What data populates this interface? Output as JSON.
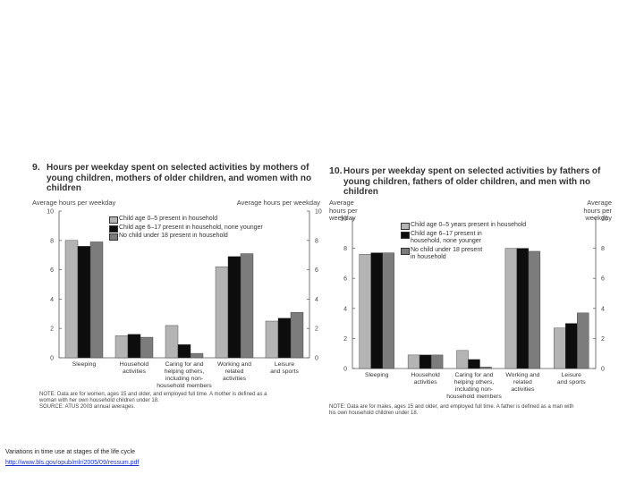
{
  "footer": {
    "caption": "Variations in time use at stages of the life cycle",
    "link": "http://www.bls.gov/opub/mlr/2005/09/ressum.pdf"
  },
  "colors": {
    "bar_light": "#b4b4b4",
    "bar_dark": "#0d0d0d",
    "bar_mid": "#7c7c7c"
  },
  "chart_data": [
    {
      "type": "bar",
      "number": "9.",
      "title": "Hours per weekday spent on selected activities by mothers of young children, mothers of older children, and women with no children",
      "ylabel_left": "Average hours per weekday",
      "ylabel_right": "Average hours per weekday",
      "ylim": [
        0,
        10
      ],
      "yticks": [
        "0",
        "2",
        "4",
        "6",
        "8",
        "10"
      ],
      "grid": false,
      "legend_position": "top-center",
      "categories": [
        "Sleeping",
        "Household activities",
        "Caring for and helping others, including non-household members",
        "Working and related activities",
        "Leisure and sports"
      ],
      "category_lines": [
        [
          "Sleeping"
        ],
        [
          "Household",
          "activities"
        ],
        [
          "Caring for and",
          "helping others,",
          "including non-",
          "household members"
        ],
        [
          "Working and",
          "related",
          "activities"
        ],
        [
          "Leisure",
          "and sports"
        ]
      ],
      "series": [
        {
          "name": "Child age 0–5 present in household",
          "values": [
            8.0,
            1.5,
            2.2,
            6.2,
            2.5
          ]
        },
        {
          "name": "Child age 6–17 present in household, none younger",
          "values": [
            7.6,
            1.6,
            0.9,
            6.9,
            2.7
          ]
        },
        {
          "name": "No child under 18 present in household",
          "values": [
            7.9,
            1.4,
            0.3,
            7.1,
            3.1
          ]
        }
      ],
      "legend_lines": [
        [
          "Child age 0–5 present in household"
        ],
        [
          "Child age 6–17 present in household, none younger"
        ],
        [
          "No child under 18 present in household"
        ]
      ],
      "note_lines": [
        "NOTE:   Data are for women, ages 15 and older, and employed full time. A mother is defined as a",
        "woman with her own household children under 18.",
        "SOURCE:   ATUS 2003 annual averages."
      ]
    },
    {
      "type": "bar",
      "number": "10.",
      "title": "Hours per weekday spent on selected activities by fathers of young children, fathers of older children, and men with no children",
      "ylabel_left": "Average hours per weekday",
      "ylabel_right": "Average hours per weekday",
      "ylim": [
        0,
        10
      ],
      "yticks": [
        "0",
        "2",
        "4",
        "6",
        "8",
        "10"
      ],
      "grid": false,
      "legend_position": "top-center",
      "categories": [
        "Sleeping",
        "Household activities",
        "Caring for and helping others, including non-household members",
        "Working and related activities",
        "Leisure and sports"
      ],
      "category_lines": [
        [
          "Sleeping"
        ],
        [
          "Household",
          "activities"
        ],
        [
          "Caring for and",
          "helping others,",
          "including non-",
          "household members"
        ],
        [
          "Working and",
          "related",
          "activities"
        ],
        [
          "Leisure",
          "and sports"
        ]
      ],
      "series": [
        {
          "name": "Child age 0–5 years present in household",
          "values": [
            7.6,
            0.9,
            1.2,
            8.0,
            2.7
          ]
        },
        {
          "name": "Child age 6–17 present in household, none younger",
          "values": [
            7.7,
            0.9,
            0.6,
            8.0,
            3.0
          ]
        },
        {
          "name": "No child under 18 present in household",
          "values": [
            7.7,
            0.9,
            0.1,
            7.8,
            3.7
          ]
        }
      ],
      "legend_lines": [
        [
          "Child age 0–5 years present in household"
        ],
        [
          "Child age 6–17 present in",
          "household, none younger"
        ],
        [
          "No child under 18 present",
          "in household"
        ]
      ],
      "note_lines": [
        "NOTE:   Data are for males, ages 15 and older, and employed full time. A father is defined as a man with",
        "his own household children under 18."
      ]
    }
  ]
}
